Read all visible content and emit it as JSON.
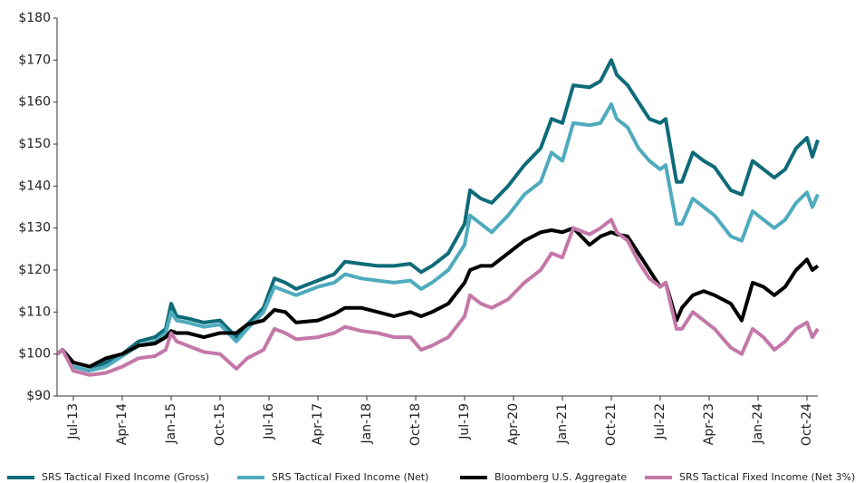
{
  "chart_data": {
    "type": "line",
    "x": [
      "2013-04",
      "2013-05",
      "2013-07",
      "2013-10",
      "2014-01",
      "2014-04",
      "2014-07",
      "2014-10",
      "2014-12",
      "2015-01",
      "2015-02",
      "2015-04",
      "2015-07",
      "2015-10",
      "2016-01",
      "2016-03",
      "2016-06",
      "2016-08",
      "2016-10",
      "2016-12",
      "2017-04",
      "2017-07",
      "2017-09",
      "2017-12",
      "2018-03",
      "2018-06",
      "2018-09",
      "2018-11",
      "2019-01",
      "2019-04",
      "2019-07",
      "2019-08",
      "2019-10",
      "2019-12",
      "2020-03",
      "2020-06",
      "2020-09",
      "2020-11",
      "2021-01",
      "2021-03",
      "2021-06",
      "2021-08",
      "2021-10",
      "2021-11",
      "2022-01",
      "2022-03",
      "2022-05",
      "2022-07",
      "2022-08",
      "2022-10",
      "2022-11",
      "2023-01",
      "2023-03",
      "2023-05",
      "2023-08",
      "2023-10",
      "2023-12",
      "2024-02",
      "2024-04",
      "2024-06",
      "2024-08",
      "2024-10",
      "2024-11",
      "2024-12"
    ],
    "series": [
      {
        "name": "SRS Tactical Fixed Income (Gross)",
        "color": "#0e6b78",
        "values": [
          100,
          101,
          97,
          96,
          98,
          100,
          103,
          104,
          106,
          112,
          109,
          108.5,
          107.5,
          108,
          104,
          107,
          111,
          118,
          117,
          115.5,
          117.5,
          119,
          122,
          121.5,
          121,
          121,
          121.5,
          119.5,
          121,
          124,
          131,
          139,
          137,
          136,
          140,
          145,
          149,
          156,
          155,
          164,
          163.5,
          165,
          170,
          166.5,
          164,
          160,
          156,
          155,
          156,
          141,
          141,
          148,
          146,
          144.5,
          139,
          138,
          146,
          144,
          142,
          144,
          149,
          151.5,
          147,
          151
        ]
      },
      {
        "name": "SRS Tactical Fixed Income (Net)",
        "color": "#4fabbd",
        "values": [
          100,
          101,
          97,
          96,
          97,
          99.5,
          102,
          103,
          105,
          110,
          108,
          107.5,
          106.5,
          107,
          103,
          106,
          110,
          116,
          115,
          114,
          116,
          117,
          119,
          118,
          117.5,
          117,
          117.5,
          115.5,
          117,
          120,
          126,
          133,
          131,
          129,
          133,
          138,
          141,
          148,
          146,
          155,
          154.5,
          155,
          159.5,
          156,
          154,
          149,
          146,
          144,
          145,
          131,
          131,
          137,
          135,
          133,
          128,
          127,
          134,
          132,
          130,
          132,
          136,
          138.5,
          135,
          138
        ]
      },
      {
        "name": "Bloomberg U.S. Aggregate",
        "color": "#000000",
        "values": [
          100,
          101,
          98,
          97,
          99,
          100,
          102,
          102.5,
          104,
          105.5,
          105,
          105,
          104,
          105,
          105,
          107,
          108,
          110.5,
          110,
          107.5,
          108,
          109.5,
          111,
          111,
          110,
          109,
          110,
          109,
          110,
          112,
          117,
          120,
          121,
          121,
          124,
          127,
          129,
          129.5,
          129,
          130,
          126,
          128,
          129,
          128.5,
          128,
          124,
          120,
          116,
          117,
          108,
          111,
          114,
          115,
          114,
          112,
          108,
          117,
          116,
          114,
          116,
          120,
          122.5,
          120,
          121
        ]
      },
      {
        "name": "SRS Tactical Fixed Income (Net 3%)",
        "color": "#c478a8",
        "values": [
          100,
          101,
          96,
          95,
          95.5,
          97,
          99,
          99.5,
          101,
          105,
          103,
          102,
          100.5,
          100,
          96.5,
          99,
          101,
          106,
          105,
          103.5,
          104,
          105,
          106.5,
          105.5,
          105,
          104,
          104,
          101,
          102,
          104,
          109,
          114,
          112,
          111,
          113,
          117,
          120,
          124,
          123,
          130,
          128.5,
          130,
          132,
          129,
          127,
          122,
          118,
          116,
          117,
          106,
          106,
          110,
          108,
          106,
          101.5,
          100,
          106,
          104,
          101,
          103,
          106,
          107.5,
          104,
          106
        ]
      }
    ],
    "xlim": [
      "2013-04",
      "2024-12"
    ],
    "xticks": [
      {
        "value": "2013-07",
        "label": "Jul-13"
      },
      {
        "value": "2014-04",
        "label": "Apr-14"
      },
      {
        "value": "2015-01",
        "label": "Jan-15"
      },
      {
        "value": "2015-10",
        "label": "Oct-15"
      },
      {
        "value": "2016-07",
        "label": "Jul-16"
      },
      {
        "value": "2017-04",
        "label": "Apr-17"
      },
      {
        "value": "2018-01",
        "label": "Jan-18"
      },
      {
        "value": "2018-10",
        "label": "Oct-18"
      },
      {
        "value": "2019-07",
        "label": "Jul-19"
      },
      {
        "value": "2020-04",
        "label": "Apr-20"
      },
      {
        "value": "2021-01",
        "label": "Jan-21"
      },
      {
        "value": "2021-10",
        "label": "Oct-21"
      },
      {
        "value": "2022-07",
        "label": "Jul-22"
      },
      {
        "value": "2023-04",
        "label": "Apr-23"
      },
      {
        "value": "2024-01",
        "label": "Jan-24"
      },
      {
        "value": "2024-10",
        "label": "Oct-24"
      }
    ],
    "ylim": [
      90,
      180
    ],
    "yticks": [
      {
        "value": 90,
        "label": "$90"
      },
      {
        "value": 100,
        "label": "$100"
      },
      {
        "value": 110,
        "label": "$110"
      },
      {
        "value": 120,
        "label": "$120"
      },
      {
        "value": 130,
        "label": "$130"
      },
      {
        "value": 140,
        "label": "$140"
      },
      {
        "value": 150,
        "label": "$150"
      },
      {
        "value": 160,
        "label": "$160"
      },
      {
        "value": 170,
        "label": "$170"
      },
      {
        "value": 180,
        "label": "$180"
      }
    ],
    "legend": "bottom"
  }
}
